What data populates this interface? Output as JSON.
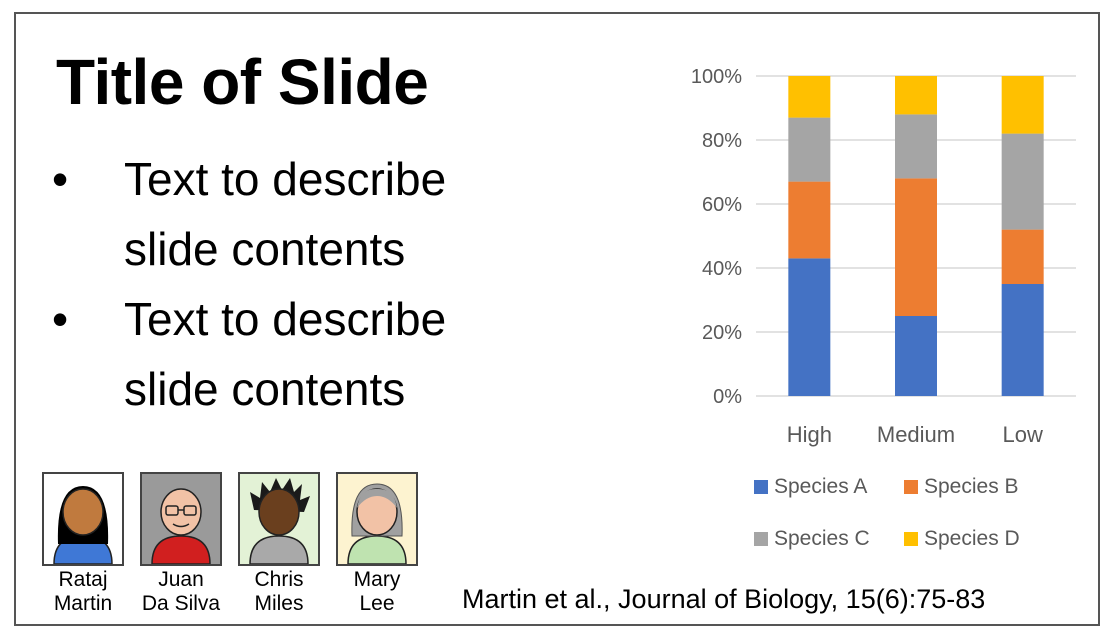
{
  "slide": {
    "title": "Title of Slide",
    "bullets": [
      {
        "symbol": "•",
        "lines": [
          "Text to describe",
          "slide contents"
        ]
      },
      {
        "symbol": "•",
        "lines": [
          "Text to describe",
          "slide contents"
        ]
      }
    ],
    "authors": [
      {
        "first": "Rataj",
        "last": "Martin",
        "bg": "#ffffff",
        "skin": "#c07a3e",
        "hair": "#000000",
        "shirt": "#3f78d6"
      },
      {
        "first": "Juan",
        "last": "Da Silva",
        "bg": "#9a9a9a",
        "skin": "#f2c2a6",
        "hair": "#f2c2a6",
        "shirt": "#d11f1f"
      },
      {
        "first": "Chris",
        "last": "Miles",
        "bg": "#e3f2d6",
        "skin": "#6a3f1e",
        "hair": "#1a1a1a",
        "shirt": "#a9a9a9"
      },
      {
        "first": "Mary",
        "last": "Lee",
        "bg": "#fdf3d0",
        "skin": "#f2c2a6",
        "hair": "#a0a0a0",
        "shirt": "#bfe3b0"
      }
    ],
    "citation": "Martin et al., Journal of Biology, 15(6):75-83"
  },
  "chart_data": {
    "type": "bar",
    "stacked": true,
    "percent": true,
    "categories": [
      "High",
      "Medium",
      "Low"
    ],
    "series": [
      {
        "name": "Species A",
        "values": [
          43,
          25,
          35
        ],
        "color": "#4472c4"
      },
      {
        "name": "Species B",
        "values": [
          24,
          43,
          17
        ],
        "color": "#ed7d31"
      },
      {
        "name": "Species C",
        "values": [
          20,
          20,
          30
        ],
        "color": "#a5a5a5"
      },
      {
        "name": "Species D",
        "values": [
          13,
          12,
          18
        ],
        "color": "#ffc000"
      }
    ],
    "yticks": [
      "0%",
      "20%",
      "40%",
      "60%",
      "80%",
      "100%"
    ],
    "ylim": [
      0,
      100
    ],
    "grid": true,
    "legend_position": "bottom"
  }
}
